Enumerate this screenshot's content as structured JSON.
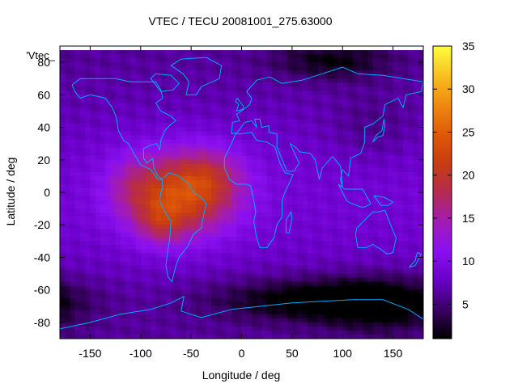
{
  "chart_data": {
    "type": "heatmap",
    "title": "VTEC / TECU 20081001_275.63000",
    "legend_label": "'Vtec_",
    "xlabel": "Longitude / deg",
    "ylabel": "Latitude / deg",
    "xlim": [
      -180,
      180
    ],
    "ylim": [
      -90,
      90
    ],
    "x_ticks": [
      -150,
      -100,
      -50,
      0,
      50,
      100,
      150
    ],
    "y_ticks": [
      -80,
      -60,
      -40,
      -20,
      0,
      20,
      40,
      60,
      80
    ],
    "colorbar": {
      "range": [
        1,
        35
      ],
      "ticks": [
        5,
        10,
        15,
        20,
        25,
        30,
        35
      ],
      "palette": [
        "#000000",
        "#3a0064",
        "#6a00c8",
        "#8a10f0",
        "#a21cb4",
        "#b52a50",
        "#c83c10",
        "#e05a08",
        "#f08a10",
        "#f8c020",
        "#ffff40"
      ]
    },
    "grid": {
      "lon_start": -180,
      "lon_step": 5,
      "lat_start": 87.5,
      "lat_step": -2.5,
      "background_level": 7.5,
      "blobs": [
        {
          "lon": -60,
          "lat": 0,
          "sig_lon": 38,
          "sig_lat": 18,
          "amp": 14
        },
        {
          "lon": -80,
          "lat": -18,
          "sig_lon": 16,
          "sig_lat": 10,
          "amp": 5
        },
        {
          "lon": -30,
          "lat": 12,
          "sig_lon": 22,
          "sig_lat": 12,
          "amp": 4
        },
        {
          "lon": -110,
          "lat": 5,
          "sig_lon": 18,
          "sig_lat": 14,
          "amp": 3
        },
        {
          "lon": 75,
          "lat": -65,
          "sig_lon": 70,
          "sig_lat": 9,
          "amp": -7
        },
        {
          "lon": 140,
          "lat": -68,
          "sig_lon": 40,
          "sig_lat": 12,
          "amp": -5
        },
        {
          "lon": 90,
          "lat": 82,
          "sig_lon": 40,
          "sig_lat": 8,
          "amp": -5
        },
        {
          "lon": 130,
          "lat": 40,
          "sig_lon": 30,
          "sig_lat": 15,
          "amp": -2
        }
      ]
    },
    "coastlines": [
      {
        "name": "north-america",
        "points": [
          [
            -168,
            66
          ],
          [
            -160,
            70
          ],
          [
            -140,
            70
          ],
          [
            -125,
            70
          ],
          [
            -110,
            68
          ],
          [
            -95,
            68
          ],
          [
            -85,
            68
          ],
          [
            -80,
            63
          ],
          [
            -78,
            58
          ],
          [
            -85,
            55
          ],
          [
            -80,
            50
          ],
          [
            -70,
            47
          ],
          [
            -65,
            44
          ],
          [
            -70,
            42
          ],
          [
            -76,
            38
          ],
          [
            -80,
            32
          ],
          [
            -81,
            26
          ],
          [
            -84,
            30
          ],
          [
            -90,
            29
          ],
          [
            -97,
            27
          ],
          [
            -97,
            21
          ],
          [
            -94,
            18
          ],
          [
            -88,
            21
          ],
          [
            -87,
            15
          ],
          [
            -83,
            10
          ],
          [
            -79,
            8
          ],
          [
            -83,
            8
          ],
          [
            -90,
            14
          ],
          [
            -100,
            17
          ],
          [
            -106,
            23
          ],
          [
            -112,
            30
          ],
          [
            -117,
            32
          ],
          [
            -122,
            38
          ],
          [
            -124,
            46
          ],
          [
            -128,
            52
          ],
          [
            -135,
            58
          ],
          [
            -150,
            60
          ],
          [
            -160,
            58
          ],
          [
            -165,
            62
          ],
          [
            -168,
            66
          ]
        ]
      },
      {
        "name": "south-america",
        "points": [
          [
            -79,
            8
          ],
          [
            -72,
            12
          ],
          [
            -62,
            10
          ],
          [
            -52,
            5
          ],
          [
            -48,
            0
          ],
          [
            -40,
            -3
          ],
          [
            -35,
            -7
          ],
          [
            -38,
            -15
          ],
          [
            -40,
            -22
          ],
          [
            -48,
            -26
          ],
          [
            -53,
            -33
          ],
          [
            -57,
            -36
          ],
          [
            -62,
            -40
          ],
          [
            -65,
            -45
          ],
          [
            -67,
            -50
          ],
          [
            -69,
            -55
          ],
          [
            -73,
            -52
          ],
          [
            -75,
            -45
          ],
          [
            -73,
            -35
          ],
          [
            -71,
            -28
          ],
          [
            -70,
            -18
          ],
          [
            -76,
            -12
          ],
          [
            -81,
            -5
          ],
          [
            -80,
            0
          ],
          [
            -78,
            3
          ],
          [
            -79,
            8
          ]
        ]
      },
      {
        "name": "greenland",
        "points": [
          [
            -55,
            60
          ],
          [
            -45,
            60
          ],
          [
            -40,
            65
          ],
          [
            -22,
            70
          ],
          [
            -20,
            78
          ],
          [
            -35,
            83
          ],
          [
            -60,
            82
          ],
          [
            -70,
            78
          ],
          [
            -58,
            73
          ],
          [
            -52,
            68
          ],
          [
            -55,
            60
          ]
        ]
      },
      {
        "name": "africa",
        "points": [
          [
            -17,
            21
          ],
          [
            -17,
            15
          ],
          [
            -12,
            8
          ],
          [
            -5,
            5
          ],
          [
            5,
            5
          ],
          [
            9,
            4
          ],
          [
            12,
            -5
          ],
          [
            14,
            -12
          ],
          [
            12,
            -18
          ],
          [
            15,
            -28
          ],
          [
            18,
            -34
          ],
          [
            25,
            -34
          ],
          [
            32,
            -28
          ],
          [
            35,
            -20
          ],
          [
            40,
            -15
          ],
          [
            40,
            -5
          ],
          [
            43,
            0
          ],
          [
            51,
            11
          ],
          [
            43,
            12
          ],
          [
            38,
            18
          ],
          [
            33,
            28
          ],
          [
            25,
            31
          ],
          [
            15,
            32
          ],
          [
            10,
            37
          ],
          [
            0,
            36
          ],
          [
            -6,
            36
          ],
          [
            -10,
            30
          ],
          [
            -17,
            21
          ]
        ]
      },
      {
        "name": "eurasia",
        "points": [
          [
            -10,
            36
          ],
          [
            -9,
            43
          ],
          [
            -2,
            44
          ],
          [
            -5,
            48
          ],
          [
            2,
            51
          ],
          [
            8,
            54
          ],
          [
            10,
            58
          ],
          [
            5,
            62
          ],
          [
            15,
            69
          ],
          [
            28,
            71
          ],
          [
            40,
            67
          ],
          [
            60,
            69
          ],
          [
            80,
            73
          ],
          [
            100,
            77
          ],
          [
            115,
            73
          ],
          [
            140,
            72
          ],
          [
            160,
            70
          ],
          [
            180,
            68
          ],
          [
            178,
            62
          ],
          [
            163,
            60
          ],
          [
            160,
            52
          ],
          [
            155,
            58
          ],
          [
            142,
            54
          ],
          [
            140,
            47
          ],
          [
            130,
            42
          ],
          [
            122,
            40
          ],
          [
            122,
            31
          ],
          [
            118,
            24
          ],
          [
            108,
            21
          ],
          [
            106,
            10
          ],
          [
            100,
            14
          ],
          [
            98,
            8
          ],
          [
            100,
            3
          ],
          [
            98,
            16
          ],
          [
            93,
            20
          ],
          [
            90,
            22
          ],
          [
            80,
            15
          ],
          [
            77,
            8
          ],
          [
            73,
            20
          ],
          [
            68,
            24
          ],
          [
            57,
            25
          ],
          [
            55,
            27
          ],
          [
            48,
            30
          ],
          [
            57,
            18
          ],
          [
            52,
            13
          ],
          [
            45,
            13
          ],
          [
            43,
            16
          ],
          [
            35,
            28
          ],
          [
            35,
            36
          ],
          [
            27,
            37
          ],
          [
            27,
            41
          ],
          [
            20,
            40
          ],
          [
            18,
            45
          ],
          [
            13,
            45
          ],
          [
            15,
            40
          ],
          [
            10,
            44
          ],
          [
            3,
            43
          ],
          [
            -4,
            37
          ],
          [
            -10,
            36
          ]
        ]
      },
      {
        "name": "australia",
        "points": [
          [
            114,
            -22
          ],
          [
            113,
            -26
          ],
          [
            115,
            -34
          ],
          [
            123,
            -34
          ],
          [
            130,
            -32
          ],
          [
            138,
            -35
          ],
          [
            144,
            -38
          ],
          [
            150,
            -37
          ],
          [
            153,
            -28
          ],
          [
            147,
            -19
          ],
          [
            142,
            -11
          ],
          [
            136,
            -12
          ],
          [
            130,
            -12
          ],
          [
            122,
            -17
          ],
          [
            114,
            -22
          ]
        ]
      },
      {
        "name": "antarctica",
        "points": [
          [
            -180,
            -84
          ],
          [
            -150,
            -80
          ],
          [
            -120,
            -75
          ],
          [
            -90,
            -72
          ],
          [
            -70,
            -68
          ],
          [
            -57,
            -64
          ],
          [
            -60,
            -73
          ],
          [
            -40,
            -77
          ],
          [
            -10,
            -72
          ],
          [
            20,
            -70
          ],
          [
            50,
            -68
          ],
          [
            80,
            -67
          ],
          [
            110,
            -66
          ],
          [
            140,
            -66
          ],
          [
            165,
            -72
          ],
          [
            180,
            -78
          ]
        ]
      },
      {
        "name": "indonesia",
        "points": [
          [
            96,
            5
          ],
          [
            104,
            -5
          ],
          [
            106,
            -6
          ],
          [
            114,
            -8
          ],
          [
            118,
            -9
          ],
          [
            122,
            -9
          ],
          [
            128,
            -7
          ],
          [
            120,
            2
          ],
          [
            110,
            2
          ],
          [
            102,
            2
          ],
          [
            96,
            5
          ]
        ]
      },
      {
        "name": "new-guinea",
        "points": [
          [
            131,
            -2
          ],
          [
            141,
            -3
          ],
          [
            150,
            -6
          ],
          [
            145,
            -8
          ],
          [
            138,
            -8
          ],
          [
            131,
            -2
          ]
        ]
      },
      {
        "name": "madagascar",
        "points": [
          [
            44,
            -25
          ],
          [
            47,
            -25
          ],
          [
            50,
            -16
          ],
          [
            49,
            -12
          ],
          [
            44,
            -17
          ],
          [
            44,
            -25
          ]
        ]
      },
      {
        "name": "britain",
        "points": [
          [
            -5,
            50
          ],
          [
            1,
            51
          ],
          [
            2,
            53
          ],
          [
            -2,
            56
          ],
          [
            -4,
            58
          ],
          [
            -6,
            56
          ],
          [
            -3,
            54
          ],
          [
            -5,
            50
          ]
        ]
      },
      {
        "name": "japan",
        "points": [
          [
            130,
            31
          ],
          [
            135,
            34
          ],
          [
            140,
            35
          ],
          [
            142,
            41
          ],
          [
            141,
            45
          ],
          [
            139,
            38
          ],
          [
            133,
            35
          ],
          [
            130,
            31
          ]
        ]
      },
      {
        "name": "new-zealand",
        "points": [
          [
            166,
            -46
          ],
          [
            172,
            -42
          ],
          [
            174,
            -37
          ],
          [
            178,
            -38
          ],
          [
            172,
            -45
          ],
          [
            166,
            -46
          ]
        ]
      },
      {
        "name": "baffin",
        "points": [
          [
            -80,
            62
          ],
          [
            -68,
            63
          ],
          [
            -62,
            67
          ],
          [
            -70,
            72
          ],
          [
            -85,
            73
          ],
          [
            -90,
            70
          ],
          [
            -80,
            62
          ]
        ]
      }
    ]
  }
}
